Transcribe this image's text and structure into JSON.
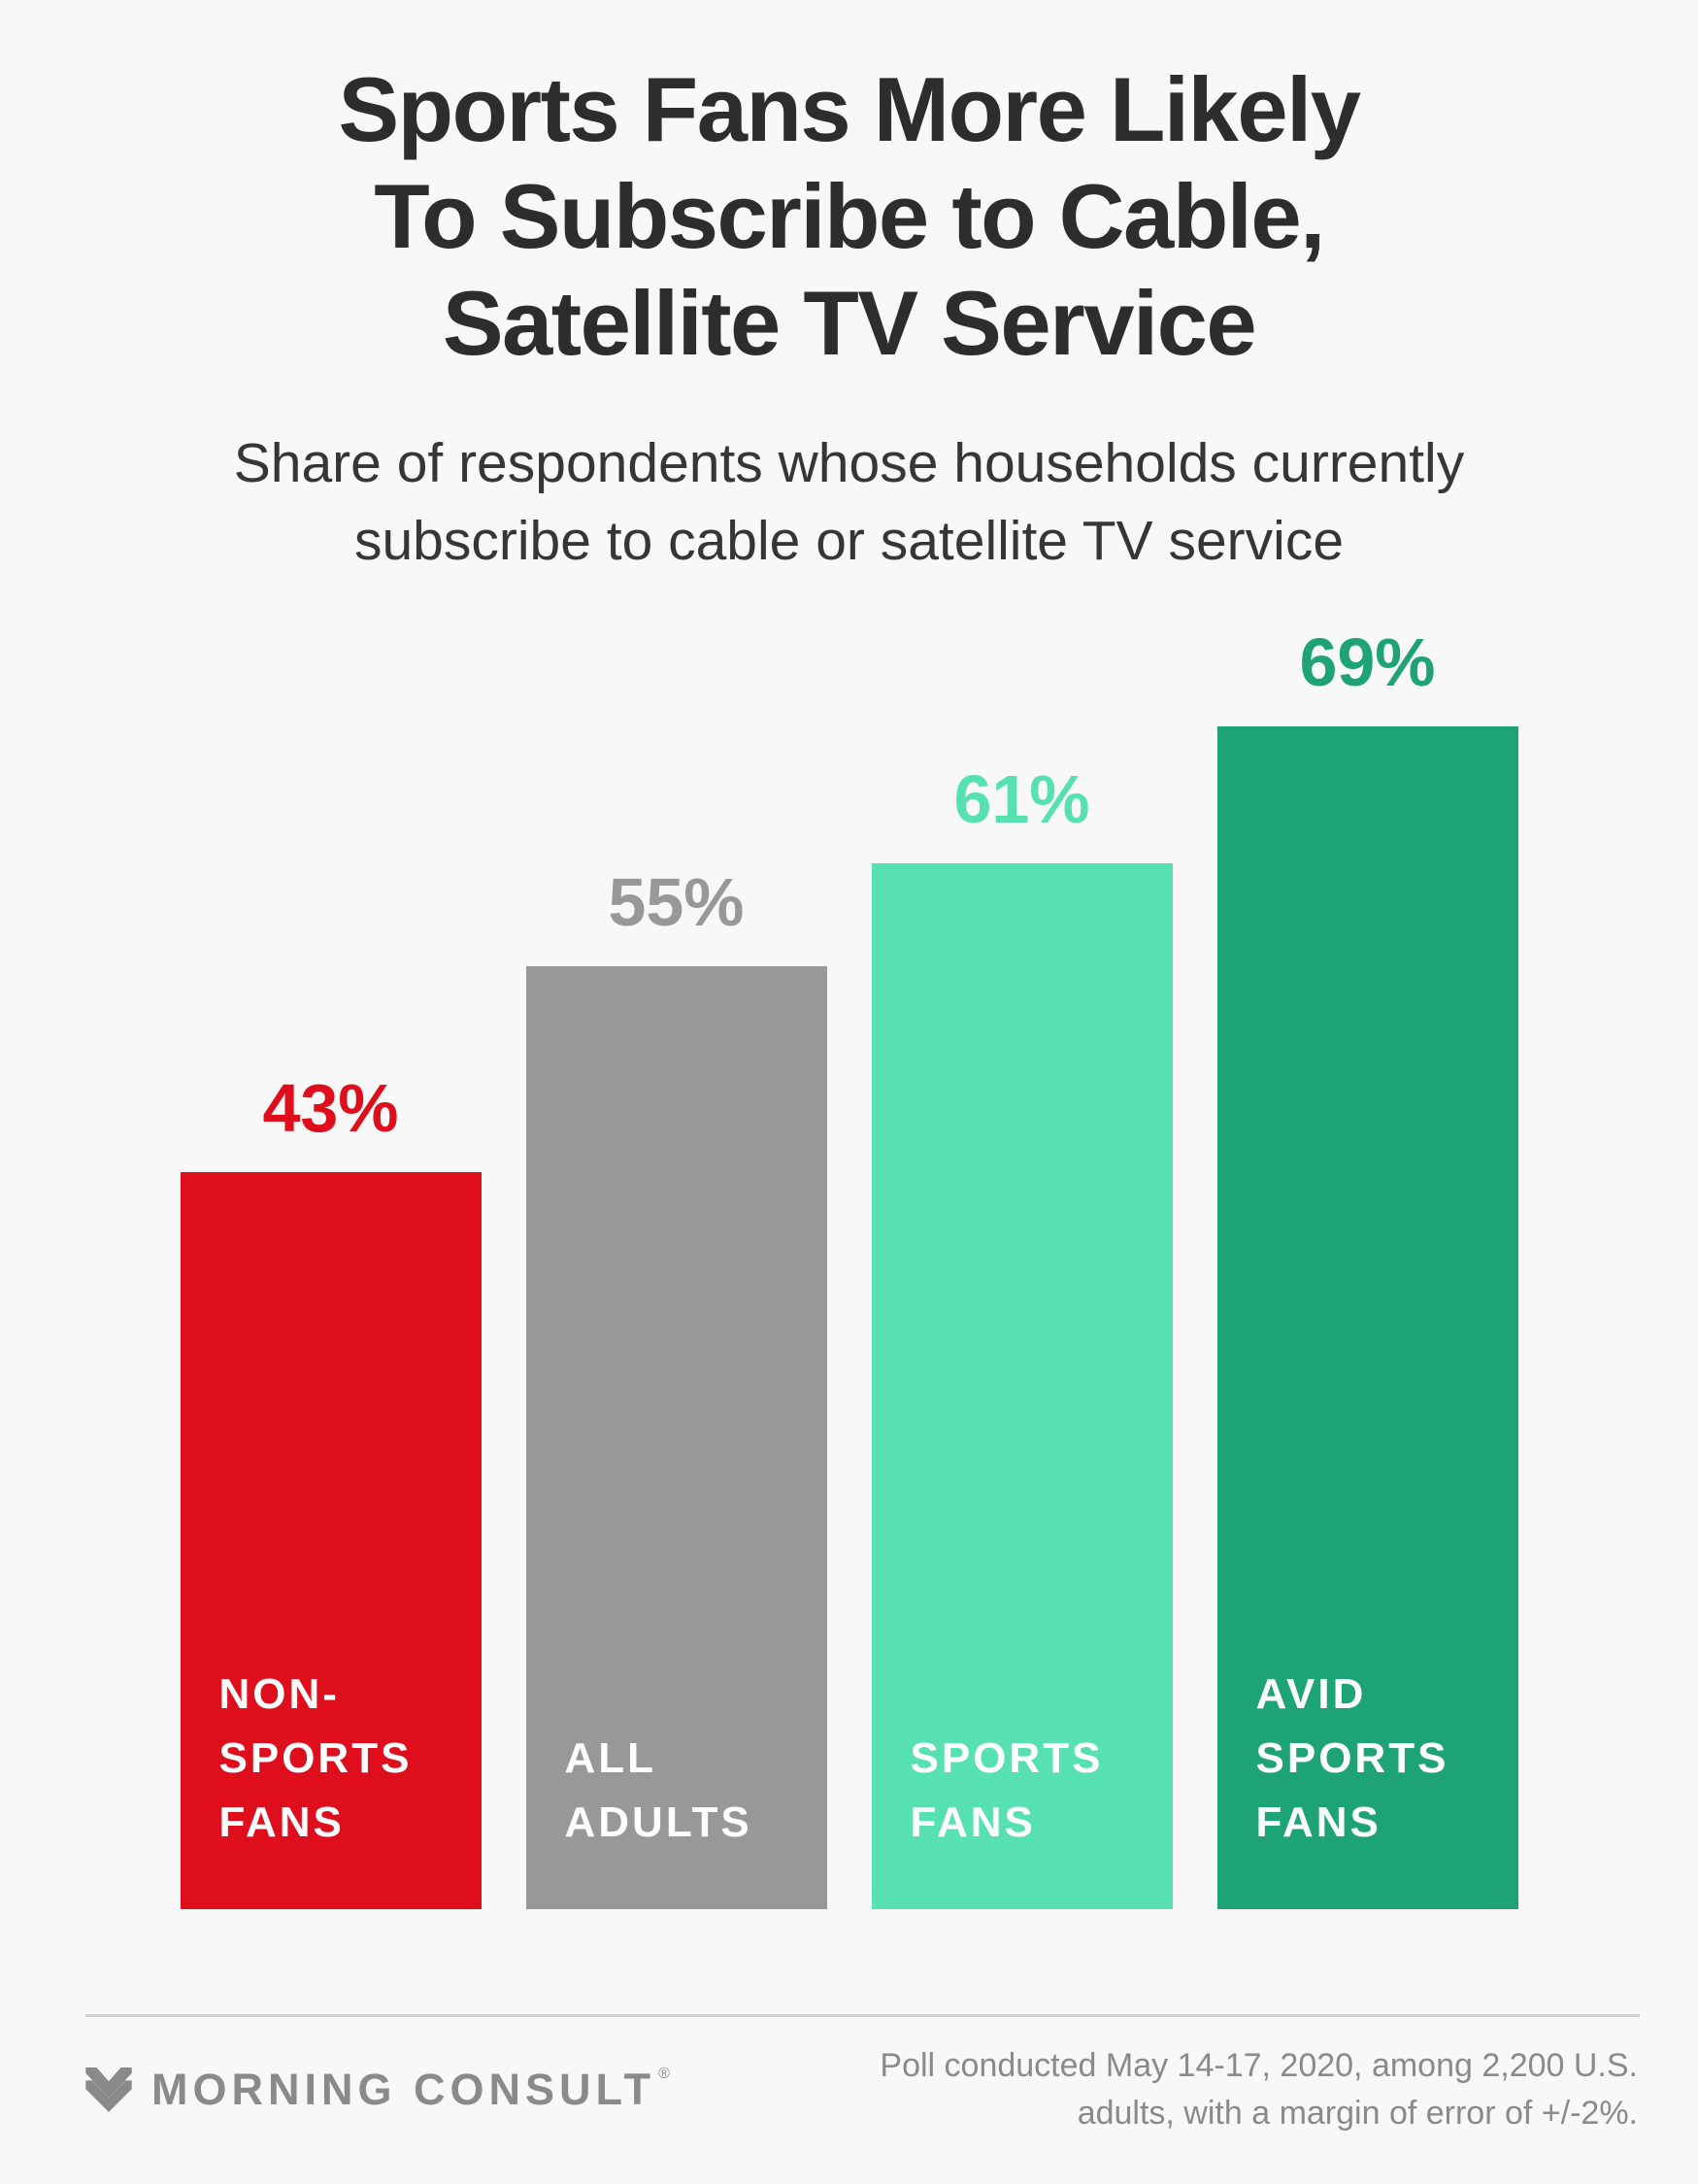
{
  "header": {
    "title_lines": [
      "Sports Fans More Likely",
      "To Subscribe to Cable,",
      "Satellite TV Service"
    ],
    "subtitle_lines": [
      "Share of respondents whose households currently",
      "subscribe to cable or satellite TV service"
    ]
  },
  "chart_data": {
    "type": "bar",
    "orientation": "vertical",
    "title": "Sports Fans More Likely To Subscribe to Cable, Satellite TV Service",
    "subtitle": "Share of respondents whose households currently subscribe to cable or satellite TV service",
    "unit": "%",
    "grid": false,
    "axes_visible": false,
    "ylim": [
      0,
      69
    ],
    "categories": [
      "NON-SPORTS FANS",
      "ALL ADULTS",
      "SPORTS FANS",
      "AVID SPORTS FANS"
    ],
    "values": [
      43,
      55,
      61,
      69
    ],
    "value_labels": [
      "43%",
      "55%",
      "61%",
      "69%"
    ],
    "bar_colors": [
      "#DE0E1C",
      "#989898",
      "#57E1B2",
      "#1EA377"
    ],
    "label_lines": [
      [
        "NON-",
        "SPORTS",
        "FANS"
      ],
      [
        "ALL",
        "ADULTS"
      ],
      [
        "SPORTS",
        "FANS"
      ],
      [
        "AVID",
        "SPORTS",
        "FANS"
      ]
    ],
    "bar_label_text_color": "#FFFFFF"
  },
  "footer": {
    "logo_text": "MORNING CONSULT",
    "registered_mark": "®",
    "note_lines": [
      "Poll conducted May 14-17, 2020, among 2,200 U.S.",
      "adults, with a margin of error of +/-2%."
    ]
  },
  "colors": {
    "background": "#F8F8F8",
    "title": "#2D2D2D",
    "subtitle": "#363636",
    "divider": "#CFCFCF",
    "footer_text": "#8A8A8A",
    "logo": "#8A8A8A"
  }
}
